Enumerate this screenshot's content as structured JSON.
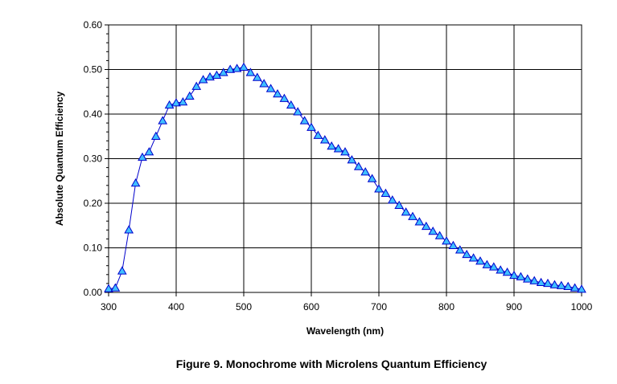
{
  "chart_data": {
    "type": "line",
    "title": "",
    "caption": "Figure 9. Monochrome with Microlens Quantum Efficiency",
    "xlabel": "Wavelength (nm)",
    "ylabel": "Absolute Quantum Efficiency",
    "xlim": [
      300,
      1000
    ],
    "ylim": [
      0.0,
      0.6
    ],
    "x_ticks": [
      "300",
      "400",
      "500",
      "600",
      "700",
      "800",
      "900",
      "1000"
    ],
    "y_ticks": [
      "0.00",
      "0.10",
      "0.20",
      "0.30",
      "0.40",
      "0.50",
      "0.60"
    ],
    "grid": true,
    "legend": "none",
    "series": [
      {
        "line_color": "#0000cc",
        "marker": "triangle",
        "marker_fill": "#3fbfff",
        "x": [
          300,
          310,
          320,
          330,
          340,
          350,
          360,
          370,
          380,
          390,
          400,
          410,
          420,
          430,
          440,
          450,
          460,
          470,
          480,
          490,
          500,
          510,
          520,
          530,
          540,
          550,
          560,
          570,
          580,
          590,
          600,
          610,
          620,
          630,
          640,
          650,
          660,
          670,
          680,
          690,
          700,
          710,
          720,
          730,
          740,
          750,
          760,
          770,
          780,
          790,
          800,
          810,
          820,
          830,
          840,
          850,
          860,
          870,
          880,
          890,
          900,
          910,
          920,
          930,
          940,
          950,
          960,
          970,
          980,
          990,
          1000
        ],
        "y": [
          0.008,
          0.01,
          0.048,
          0.14,
          0.245,
          0.303,
          0.315,
          0.35,
          0.385,
          0.42,
          0.425,
          0.427,
          0.44,
          0.462,
          0.477,
          0.483,
          0.487,
          0.493,
          0.5,
          0.502,
          0.505,
          0.493,
          0.482,
          0.468,
          0.457,
          0.445,
          0.435,
          0.42,
          0.405,
          0.385,
          0.37,
          0.352,
          0.342,
          0.328,
          0.322,
          0.315,
          0.297,
          0.282,
          0.27,
          0.255,
          0.232,
          0.222,
          0.207,
          0.195,
          0.18,
          0.17,
          0.158,
          0.148,
          0.137,
          0.127,
          0.115,
          0.105,
          0.095,
          0.085,
          0.077,
          0.07,
          0.062,
          0.057,
          0.05,
          0.045,
          0.038,
          0.035,
          0.03,
          0.026,
          0.022,
          0.02,
          0.017,
          0.015,
          0.013,
          0.01,
          0.007
        ]
      }
    ]
  }
}
